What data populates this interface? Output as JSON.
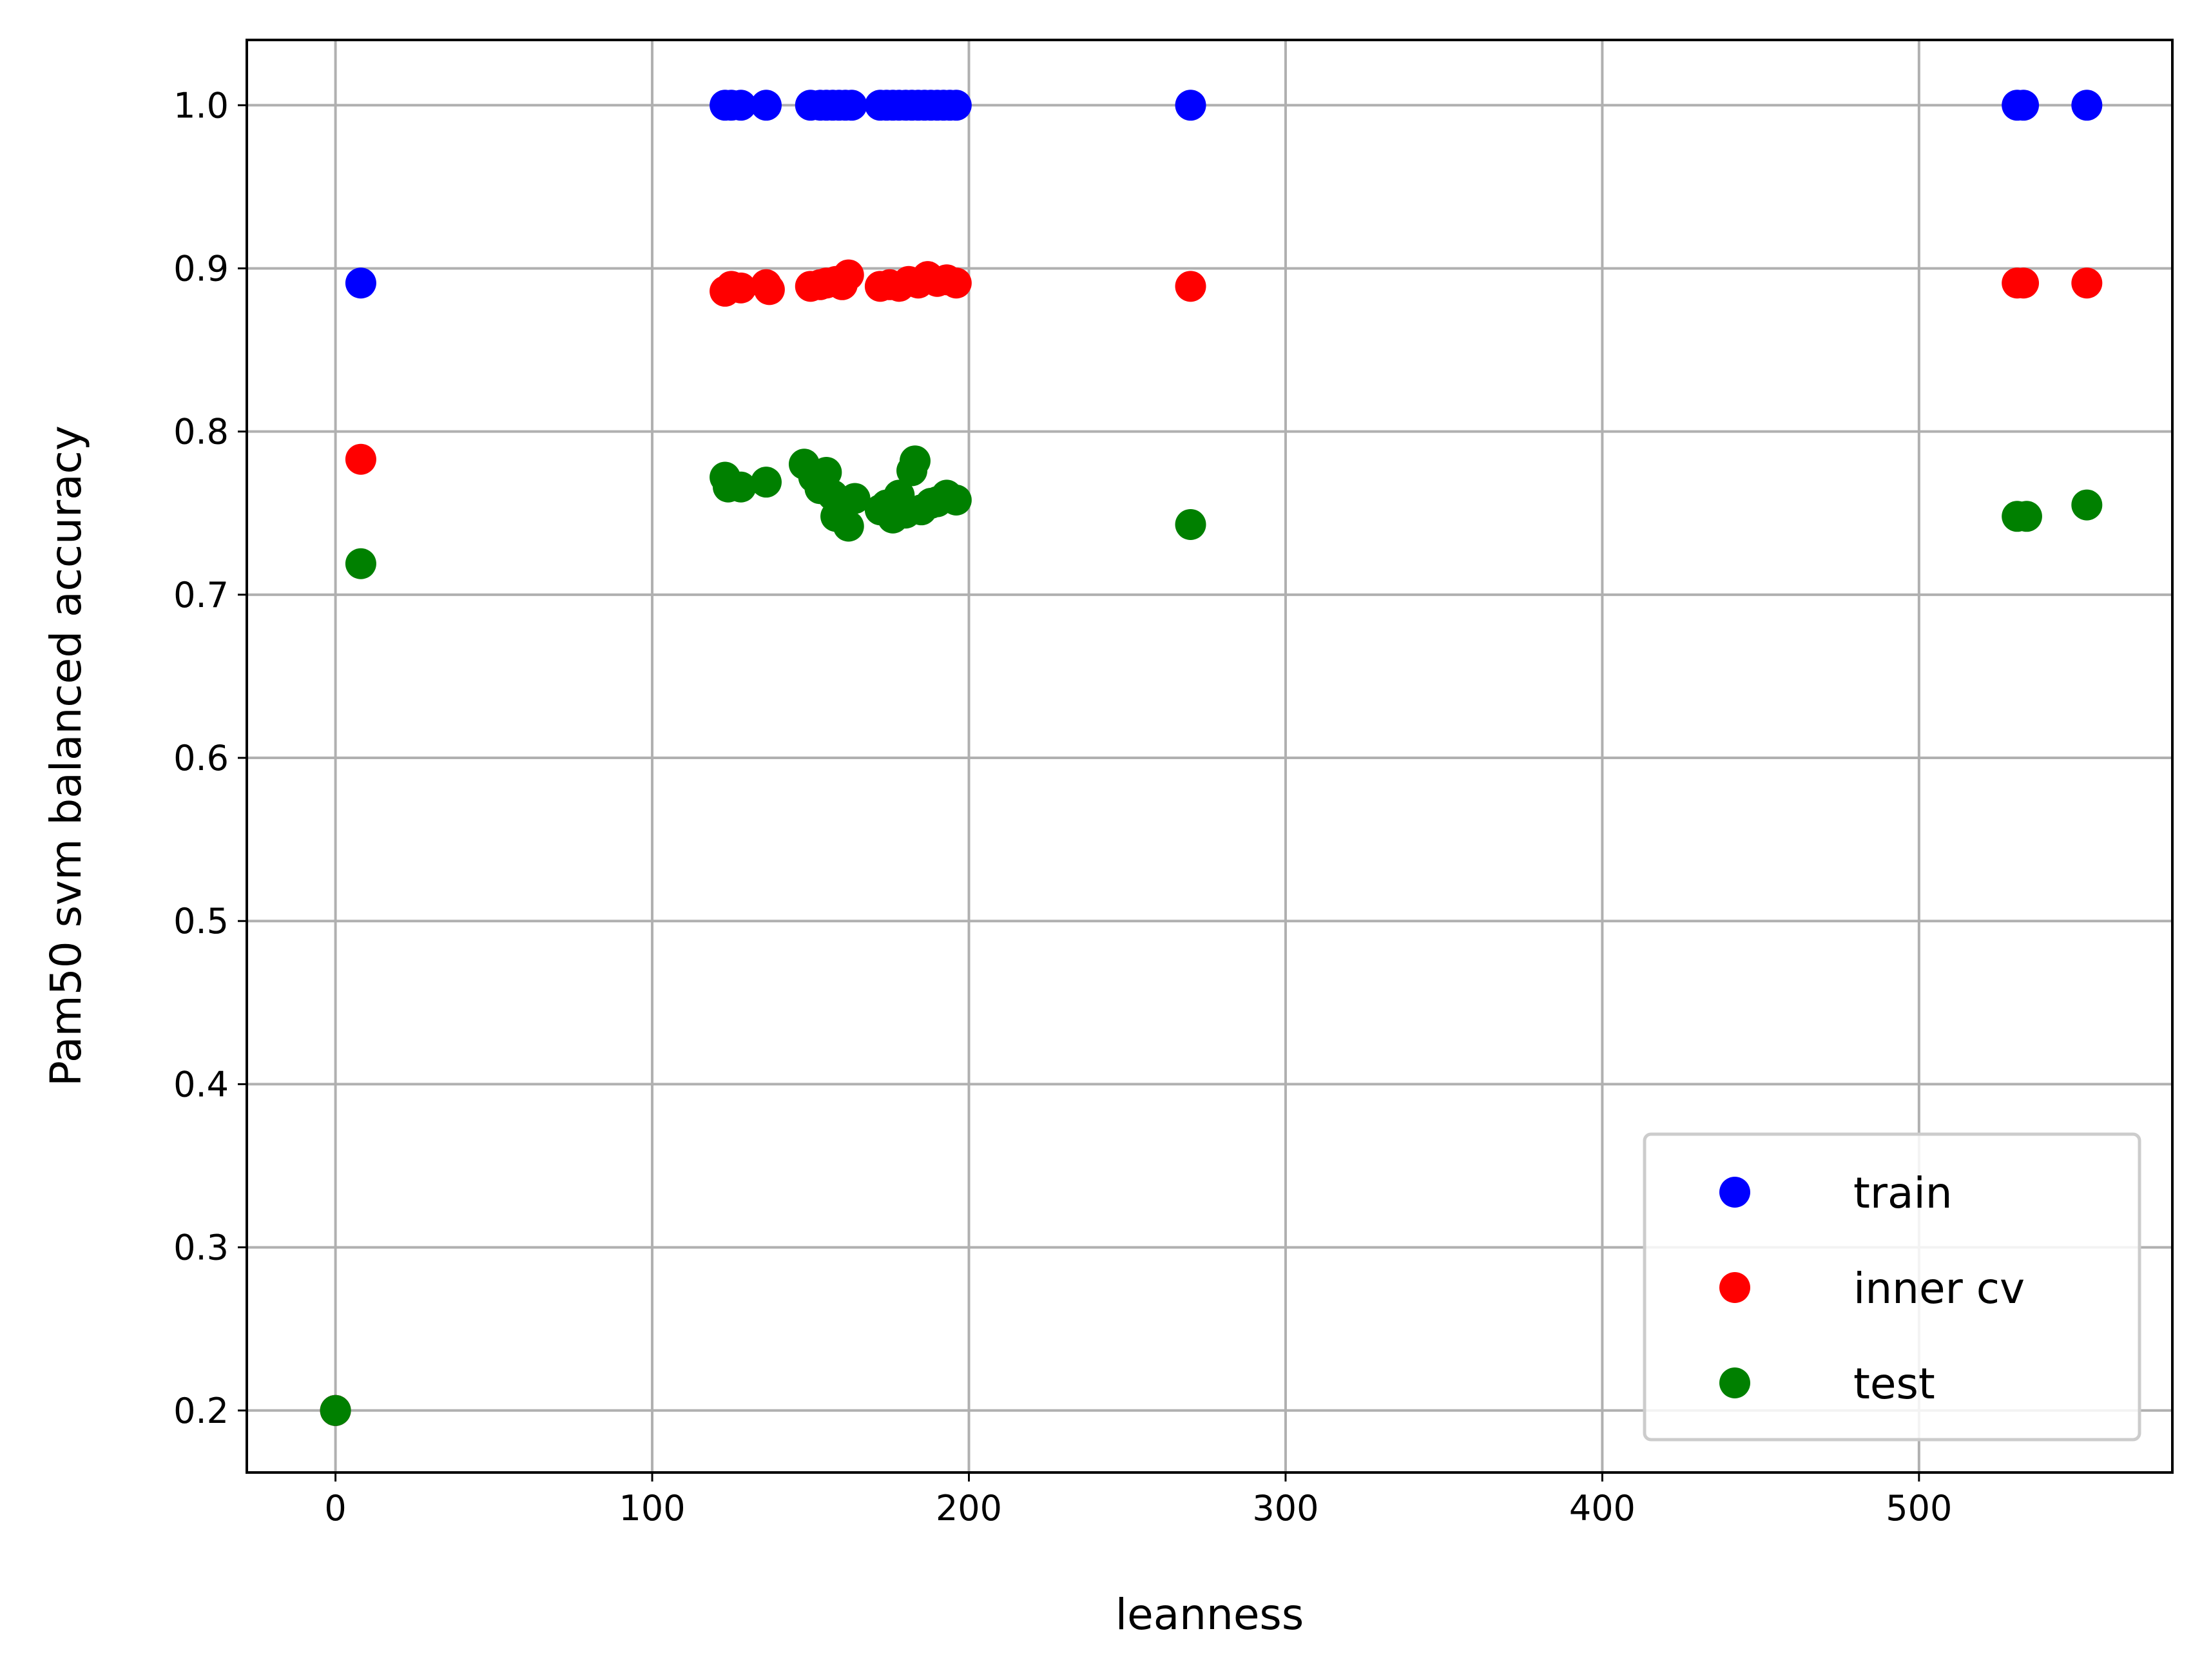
{
  "chart_data": {
    "type": "scatter",
    "xlabel": "leanness",
    "ylabel": "Pam50 svm balanced accuracy",
    "xlim": [
      -28,
      580
    ],
    "ylim": [
      0.162,
      1.04
    ],
    "xticks": [
      0,
      100,
      200,
      300,
      400,
      500
    ],
    "yticks": [
      0.2,
      0.3,
      0.4,
      0.5,
      0.6,
      0.7,
      0.8,
      0.9,
      1.0
    ],
    "xtick_labels": [
      "0",
      "100",
      "200",
      "300",
      "400",
      "500"
    ],
    "ytick_labels": [
      "0.2",
      "0.3",
      "0.4",
      "0.5",
      "0.6",
      "0.7",
      "0.8",
      "0.9",
      "1.0"
    ],
    "grid": true,
    "legend_position": "bottom-right",
    "series": [
      {
        "name": "train",
        "color": "#0000ff",
        "x": [
          0,
          8,
          123,
          125,
          128,
          136,
          150,
          153,
          155,
          157,
          159,
          161,
          163,
          172,
          174,
          176,
          178,
          180,
          182,
          184,
          186,
          188,
          190,
          192,
          194,
          196,
          270,
          531,
          533,
          553
        ],
        "y": [
          0.2,
          0.891,
          1.0,
          1.0,
          1.0,
          1.0,
          1.0,
          1.0,
          1.0,
          1.0,
          1.0,
          1.0,
          1.0,
          1.0,
          1.0,
          1.0,
          1.0,
          1.0,
          1.0,
          1.0,
          1.0,
          1.0,
          1.0,
          1.0,
          1.0,
          1.0,
          1.0,
          1.0,
          1.0,
          1.0
        ]
      },
      {
        "name": "inner cv",
        "color": "#ff0000",
        "x": [
          0,
          8,
          123,
          125,
          128,
          136,
          137,
          150,
          153,
          155,
          158,
          160,
          162,
          172,
          175,
          178,
          181,
          184,
          187,
          190,
          193,
          196,
          270,
          531,
          533,
          553
        ],
        "y": [
          0.2,
          0.783,
          0.886,
          0.889,
          0.888,
          0.89,
          0.887,
          0.889,
          0.89,
          0.891,
          0.892,
          0.89,
          0.896,
          0.889,
          0.89,
          0.889,
          0.892,
          0.891,
          0.895,
          0.892,
          0.893,
          0.891,
          0.889,
          0.891,
          0.891,
          0.891
        ]
      },
      {
        "name": "test",
        "color": "#008000",
        "x": [
          0,
          8,
          123,
          124,
          128,
          136,
          148,
          151,
          153,
          155,
          157,
          158,
          160,
          162,
          164,
          172,
          174,
          176,
          178,
          180,
          182,
          183,
          185,
          188,
          190,
          193,
          196,
          270,
          531,
          534,
          553
        ],
        "y": [
          0.2,
          0.719,
          0.772,
          0.766,
          0.766,
          0.769,
          0.78,
          0.772,
          0.765,
          0.775,
          0.761,
          0.748,
          0.754,
          0.742,
          0.759,
          0.752,
          0.755,
          0.747,
          0.761,
          0.75,
          0.776,
          0.782,
          0.752,
          0.756,
          0.757,
          0.761,
          0.758,
          0.743,
          0.748,
          0.748,
          0.755
        ]
      }
    ]
  }
}
